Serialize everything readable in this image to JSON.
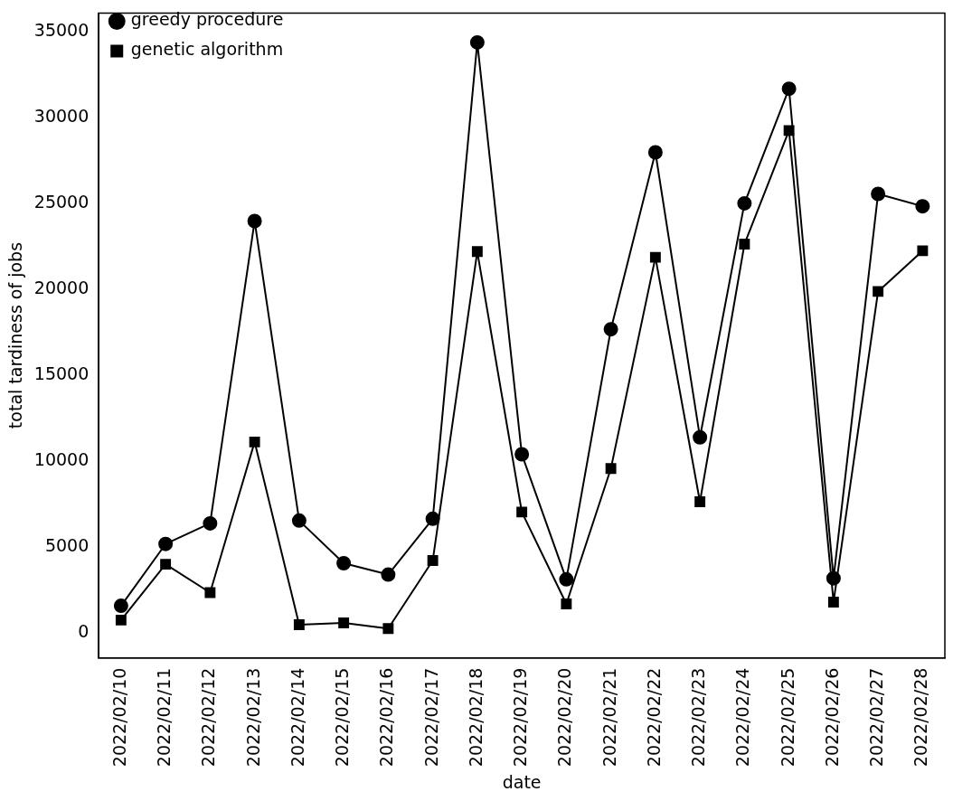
{
  "chart_data": {
    "type": "line",
    "xlabel": "date",
    "ylabel": "total tardiness of jobs",
    "categories": [
      "2022/02/10",
      "2022/02/11",
      "2022/02/12",
      "2022/02/13",
      "2022/02/14",
      "2022/02/15",
      "2022/02/16",
      "2022/02/17",
      "2022/02/18",
      "2022/02/19",
      "2022/02/20",
      "2022/02/21",
      "2022/02/22",
      "2022/02/23",
      "2022/02/24",
      "2022/02/25",
      "2022/02/26",
      "2022/02/27",
      "2022/02/28"
    ],
    "series": [
      {
        "name": "greedy procedure",
        "color": "#000000",
        "marker": "circle",
        "values": [
          1600,
          5200,
          6400,
          24000,
          6560,
          4080,
          3420,
          6670,
          34400,
          10420,
          3140,
          17700,
          28000,
          11410,
          25030,
          31700,
          3200,
          25580,
          24860
        ]
      },
      {
        "name": "genetic algorithm",
        "color": "#000000",
        "marker": "square",
        "values": [
          770,
          4020,
          2370,
          11140,
          500,
          610,
          280,
          4240,
          22220,
          7060,
          1710,
          9590,
          21890,
          7660,
          22660,
          29270,
          1820,
          19900,
          22270
        ]
      }
    ],
    "ylim": [
      -1430,
      36110
    ],
    "yticks": [
      0,
      5000,
      10000,
      15000,
      20000,
      25000,
      30000,
      35000
    ],
    "grid": false,
    "legend": "top left",
    "line_style": "solid"
  }
}
